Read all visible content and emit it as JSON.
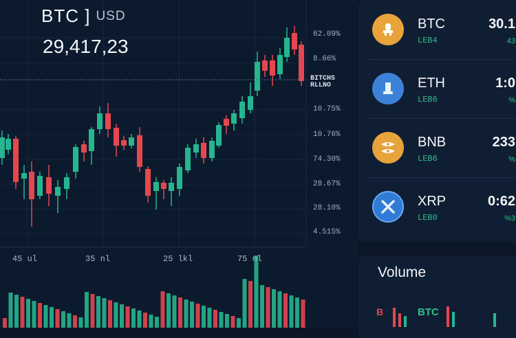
{
  "header": {
    "pair": "BTC ]",
    "quote": "USD",
    "price": "29,417,23"
  },
  "y_axis": [
    "62.09%",
    "8.66%",
    "10.75%",
    "10.76%",
    "74.30%",
    "28.67%",
    "28.10%",
    "4.515%"
  ],
  "crosshair_label": [
    "BITCHS",
    "RLLNO"
  ],
  "x_axis": [
    "45 ul",
    "35 nl",
    "25 lkl",
    "75 nl"
  ],
  "colors": {
    "up": "#26b58e",
    "down": "#e5474f",
    "btc_icon": "#e8a33a",
    "eth_icon": "#3d82d9",
    "bnb_icon": "#e8a33a",
    "xrp_icon": "#2f7bd6"
  },
  "watchlist": [
    {
      "symbol": "BTC",
      "sub": "LEB4",
      "value": "30.1",
      "change": "43",
      "icon": "btc-coin-icon"
    },
    {
      "symbol": "ETH",
      "sub": "LEB6",
      "value": "1:0",
      "change": "%",
      "icon": "eth-coin-icon"
    },
    {
      "symbol": "BNB",
      "sub": "LEB6",
      "value": "233",
      "change": "%",
      "icon": "bnb-coin-icon"
    },
    {
      "symbol": "XRP",
      "sub": "LEB0",
      "value": "0:62",
      "change": "%3",
      "icon": "xrp-coin-icon"
    }
  ],
  "volume": {
    "title": "Volume",
    "b_label": "B",
    "btc_label": "BTC"
  }
}
